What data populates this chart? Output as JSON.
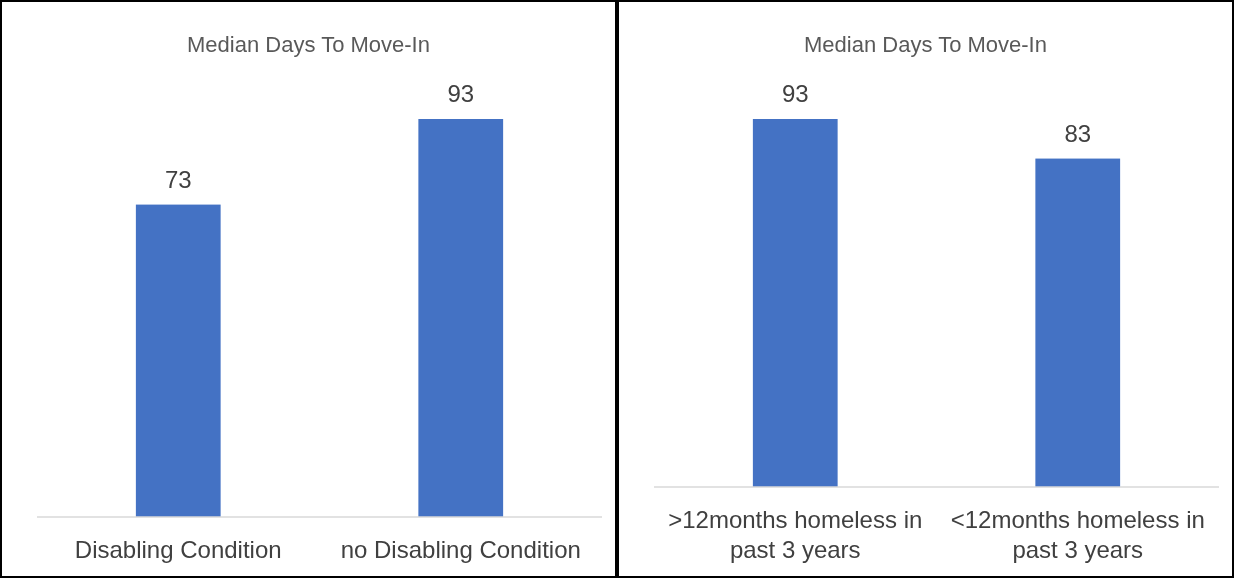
{
  "chart_data": [
    {
      "type": "bar",
      "title": "Median Days To Move-In",
      "categories": [
        "Disabling Condition",
        "no Disabling Condition"
      ],
      "values": [
        73,
        93
      ],
      "color": "#4472c4",
      "data_labels": true
    },
    {
      "type": "bar",
      "title": "Median Days To Move-In",
      "categories": [
        ">12months homeless in past 3 years",
        "<12months homeless in past 3 years"
      ],
      "values": [
        93,
        83
      ],
      "color": "#4472c4",
      "data_labels": true
    }
  ]
}
